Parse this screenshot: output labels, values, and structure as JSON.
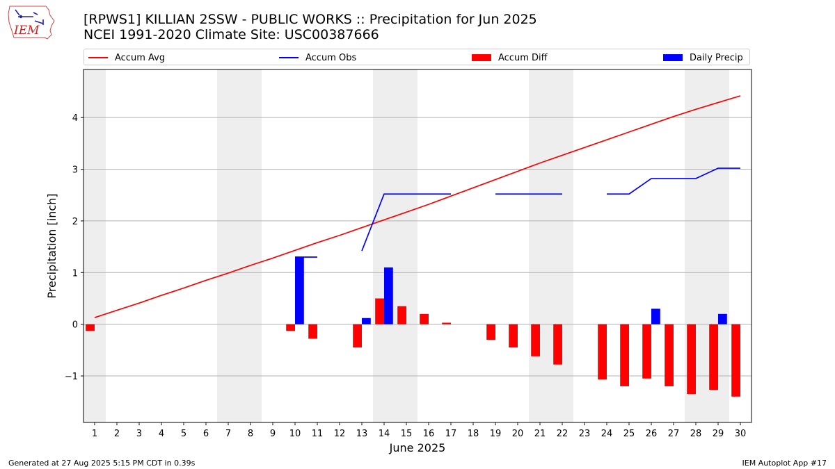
{
  "header": {
    "title_line1": "[RPWS1] KILLIAN 2SSW - PUBLIC WORKS :: Precipitation for Jun 2025",
    "title_line2": "NCEI 1991-2020 Climate Site: USC00387666",
    "logo_text": "IEM"
  },
  "legend": {
    "accum_avg": "Accum Avg",
    "accum_obs": "Accum Obs",
    "accum_diff": "Accum Diff",
    "daily_precip": "Daily Precip"
  },
  "colors": {
    "accum_avg": "#ff0000",
    "accum_obs": "#0000ff",
    "accum_diff": "#ff0000",
    "daily_precip": "#0000ff",
    "weekend_shade": "#eeeeee",
    "grid": "#b0b0b0"
  },
  "footer": {
    "left": "Generated at 27 Aug 2025 5:15 PM CDT in 0.39s",
    "right": "IEM Autoplot App #17"
  },
  "chart_data": {
    "type": "bar",
    "xlabel": "June 2025",
    "ylabel": "Precipitation [inch]",
    "xlim": [
      0.5,
      30.5
    ],
    "ylim": [
      -1.9,
      4.93
    ],
    "x_ticks": [
      "1",
      "2",
      "3",
      "4",
      "5",
      "6",
      "7",
      "8",
      "9",
      "10",
      "11",
      "12",
      "13",
      "14",
      "15",
      "16",
      "17",
      "18",
      "19",
      "20",
      "21",
      "22",
      "23",
      "24",
      "25",
      "26",
      "27",
      "28",
      "29",
      "30"
    ],
    "y_ticks": [
      -1,
      0,
      1,
      2,
      3,
      4
    ],
    "y_tick_labels": [
      "−1",
      "0",
      "1",
      "2",
      "3",
      "4"
    ],
    "grid": "y",
    "legend_position": "top",
    "shaded_days": [
      [
        1,
        1
      ],
      [
        7,
        8
      ],
      [
        14,
        15
      ],
      [
        21,
        22
      ],
      [
        28,
        29
      ]
    ],
    "days": [
      1,
      2,
      3,
      4,
      5,
      6,
      7,
      8,
      9,
      10,
      11,
      12,
      13,
      14,
      15,
      16,
      17,
      18,
      19,
      20,
      21,
      22,
      23,
      24,
      25,
      26,
      27,
      28,
      29,
      30
    ],
    "series": [
      {
        "name": "Accum Avg",
        "kind": "line",
        "values": [
          0.13,
          0.27,
          0.41,
          0.56,
          0.7,
          0.85,
          0.99,
          1.14,
          1.28,
          1.43,
          1.58,
          1.72,
          1.87,
          2.02,
          2.17,
          2.32,
          2.48,
          2.64,
          2.8,
          2.96,
          3.12,
          3.27,
          3.42,
          3.57,
          3.72,
          3.87,
          4.02,
          4.16,
          4.29,
          4.42
        ]
      },
      {
        "name": "Accum Obs",
        "kind": "line",
        "values": [
          null,
          null,
          null,
          null,
          null,
          null,
          null,
          null,
          null,
          1.3,
          1.3,
          null,
          1.42,
          2.52,
          2.52,
          2.52,
          2.52,
          null,
          2.52,
          2.52,
          2.52,
          2.52,
          null,
          2.52,
          2.52,
          2.82,
          2.82,
          2.82,
          3.02,
          3.02
        ]
      },
      {
        "name": "Accum Diff",
        "kind": "bar",
        "values": [
          -0.13,
          null,
          null,
          null,
          null,
          null,
          null,
          null,
          null,
          -0.13,
          -0.28,
          null,
          -0.45,
          0.5,
          0.35,
          0.2,
          0.03,
          null,
          -0.3,
          -0.45,
          -0.62,
          -0.78,
          null,
          -1.07,
          -1.2,
          -1.05,
          -1.2,
          -1.35,
          -1.27,
          -1.4
        ]
      },
      {
        "name": "Daily Precip",
        "kind": "bar",
        "values": [
          0,
          0,
          0,
          0,
          0,
          0,
          0,
          0,
          0,
          1.3,
          0,
          0,
          0.12,
          1.1,
          0,
          0,
          0,
          0,
          0,
          0,
          0,
          0,
          0,
          0,
          0,
          0.3,
          0,
          0,
          0.2,
          0
        ]
      }
    ]
  }
}
